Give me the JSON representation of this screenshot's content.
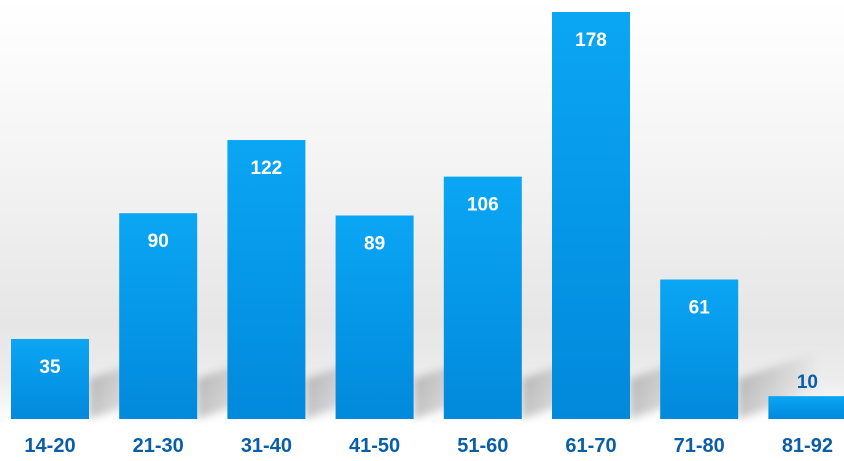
{
  "chart_data": {
    "type": "bar",
    "title": "",
    "xlabel": "",
    "ylabel": "",
    "categories": [
      "14-20",
      "21-30",
      "31-40",
      "41-50",
      "51-60",
      "61-70",
      "71-80",
      "81-92"
    ],
    "values": [
      35,
      90,
      122,
      89,
      106,
      178,
      61,
      10
    ],
    "ylim": [
      0,
      178
    ],
    "grid": false,
    "legend": "none",
    "data_labels": true,
    "colors": {
      "bar_top": "#0aa6f4",
      "bar_bottom": "#0289dc",
      "label_on_bar": "#ffffff",
      "label_small_bar": "#0a5ea8",
      "tick_label": "#0a5ea8"
    }
  }
}
